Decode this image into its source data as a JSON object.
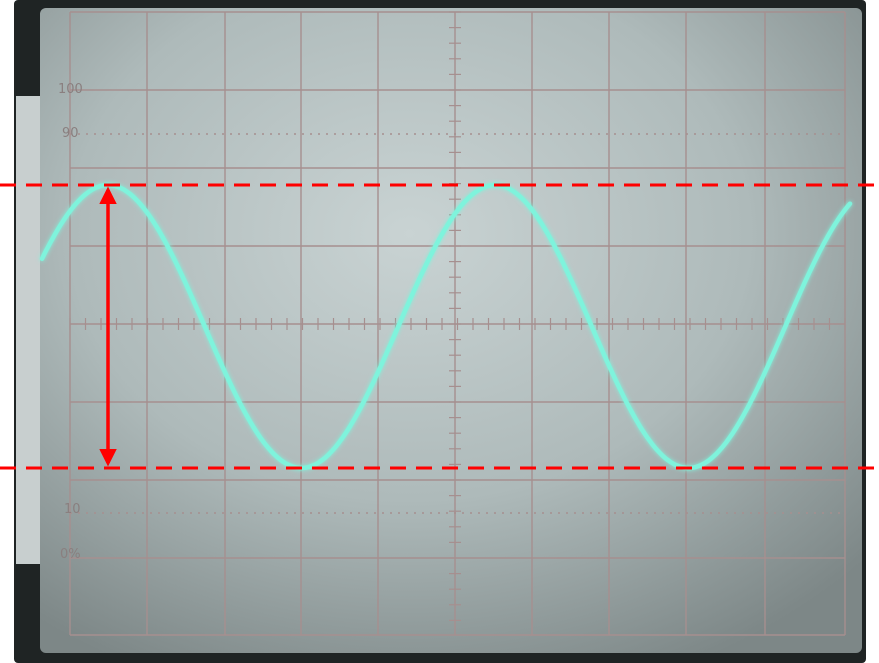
{
  "graticule": {
    "label_100": "100",
    "label_90": "90",
    "label_10": "10",
    "label_0": "0%"
  },
  "signal": {
    "type": "sine",
    "cycles_visible": 2,
    "trace_color": "#7ff3dc"
  },
  "annotation": {
    "guide_color": "#ff0000",
    "measurement": "peak-to-peak"
  }
}
